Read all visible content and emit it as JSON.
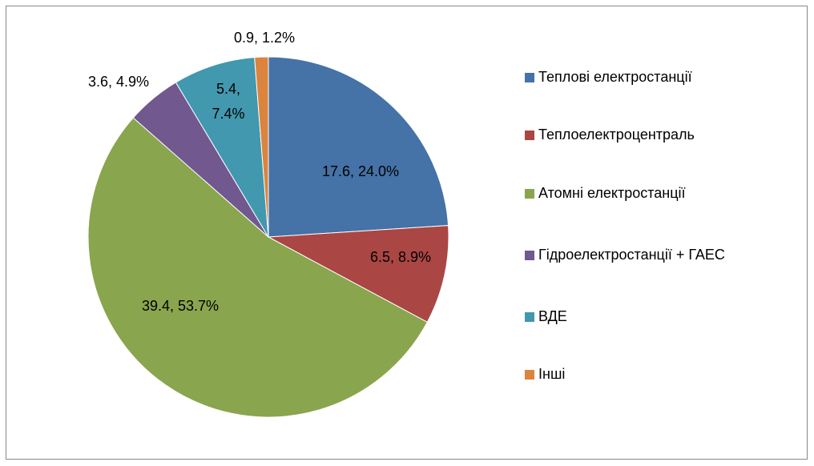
{
  "chart_data": {
    "type": "pie",
    "categories": [
      "Теплові електростанції",
      "Теплоелектроцентраль",
      "Атомні електростанції",
      "Гідроелектростанції + ГАЕС",
      "ВДЕ",
      "Інші"
    ],
    "values": [
      17.6,
      6.5,
      39.4,
      3.6,
      5.4,
      0.9
    ],
    "value_labels": [
      "17.6, 24.0%",
      "6.5, 8.9%",
      "39.4, 53.7%",
      "3.6, 4.9%",
      "5.4, 7.4%",
      "0.9, 1.2%"
    ],
    "colors": [
      "#4572a7",
      "#aa4643",
      "#89a54e",
      "#71588f",
      "#4198af",
      "#db843d"
    ],
    "legend": "right"
  }
}
